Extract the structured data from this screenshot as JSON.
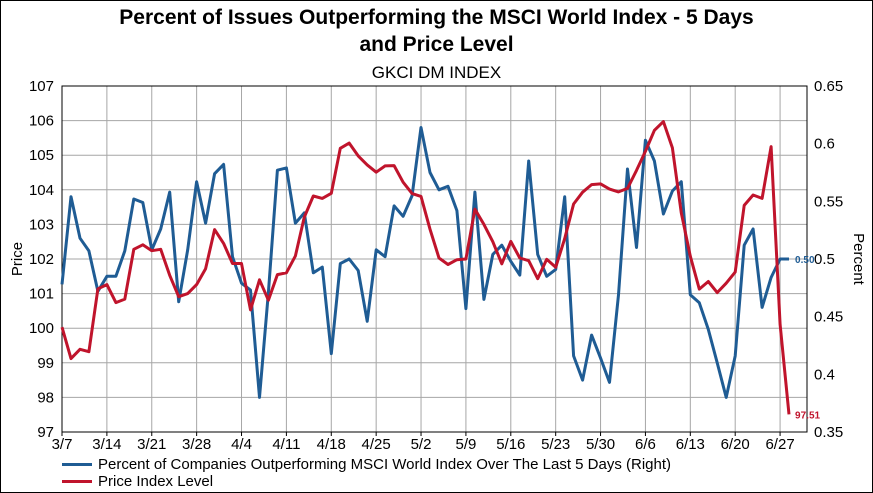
{
  "header": {
    "title_line1": "Percent of Issues Outperforming the MSCI World Index - 5 Days",
    "title_line2": "and Price Level",
    "subtitle": "GKCI DM INDEX"
  },
  "legend": {
    "items": [
      {
        "label": "Percent of Companies Outperforming MSCI World Index Over The Last 5 Days  (Right)",
        "color": "#1f5c94"
      },
      {
        "label": "Price Index Level",
        "color": "#c0142c"
      }
    ]
  },
  "chart_data": {
    "type": "line",
    "title": "Percent of Issues Outperforming the MSCI World Index - 5 Days and Price Level",
    "subtitle": "GKCI DM INDEX",
    "ylabel_left": "Price",
    "ylabel_right": "Percent",
    "ylim_left": [
      97,
      107
    ],
    "ylim_right": [
      0.35,
      0.65
    ],
    "yticks_left": [
      "97",
      "98",
      "99",
      "100",
      "101",
      "102",
      "103",
      "104",
      "105",
      "106",
      "107"
    ],
    "yticks_right": [
      "0.35",
      "0.4",
      "0.45",
      "0.5",
      "0.55",
      "0.6",
      "0.65"
    ],
    "x_tick_labels": [
      "3/7",
      "3/14",
      "3/21",
      "3/28",
      "4/4",
      "4/11",
      "4/18",
      "4/25",
      "5/2",
      "5/9",
      "5/16",
      "5/23",
      "5/30",
      "6/6",
      "6/13",
      "6/20",
      "6/27"
    ],
    "x_tick_positions": [
      0,
      5,
      10,
      15,
      20,
      25,
      30,
      35,
      40,
      45,
      50,
      55,
      60,
      65,
      70,
      75,
      80
    ],
    "grid": true,
    "legend_position": "bottom-left",
    "series": [
      {
        "name": "Percent of Companies Outperforming MSCI World Index Over The Last 5 Days  (Right)",
        "axis": "right",
        "color": "#1f5c94",
        "end_label": "0.50",
        "values": [
          0.478,
          0.554,
          0.518,
          0.507,
          0.472,
          0.485,
          0.485,
          0.507,
          0.552,
          0.549,
          0.508,
          0.526,
          0.558,
          0.463,
          0.508,
          0.567,
          0.531,
          0.574,
          0.582,
          0.502,
          0.479,
          0.473,
          0.38,
          0.471,
          0.577,
          0.579,
          0.531,
          0.54,
          0.488,
          0.493,
          0.418,
          0.496,
          0.5,
          0.49,
          0.446,
          0.508,
          0.502,
          0.546,
          0.537,
          0.555,
          0.614,
          0.575,
          0.56,
          0.563,
          0.542,
          0.457,
          0.558,
          0.465,
          0.504,
          0.512,
          0.498,
          0.486,
          0.585,
          0.504,
          0.485,
          0.491,
          0.554,
          0.416,
          0.395,
          0.434,
          0.414,
          0.393,
          0.469,
          0.578,
          0.51,
          0.603,
          0.585,
          0.539,
          0.559,
          0.567,
          0.469,
          0.462,
          0.439,
          0.41,
          0.38,
          0.416,
          0.512,
          0.526,
          0.458,
          0.484,
          0.5,
          0.5
        ]
      },
      {
        "name": "Price Index Level",
        "axis": "left",
        "color": "#c0142c",
        "end_label": "97.51",
        "values": [
          100.03,
          99.12,
          99.39,
          99.32,
          101.14,
          101.26,
          100.74,
          100.84,
          102.28,
          102.41,
          102.24,
          102.28,
          101.53,
          100.91,
          101.0,
          101.26,
          101.72,
          102.85,
          102.45,
          101.87,
          101.87,
          100.53,
          101.4,
          100.81,
          101.55,
          101.6,
          102.09,
          103.21,
          103.82,
          103.75,
          103.9,
          105.2,
          105.35,
          104.98,
          104.72,
          104.51,
          104.69,
          104.7,
          104.22,
          103.89,
          103.81,
          102.86,
          102.03,
          101.84,
          101.98,
          102.0,
          103.44,
          103.0,
          102.5,
          101.86,
          102.51,
          102.03,
          101.95,
          101.43,
          101.99,
          101.76,
          102.59,
          103.59,
          103.93,
          104.15,
          104.17,
          104.02,
          103.94,
          104.04,
          104.56,
          105.11,
          105.72,
          105.97,
          105.21,
          103.33,
          102.08,
          101.13,
          101.35,
          101.03,
          101.3,
          101.62,
          103.55,
          103.85,
          103.75,
          105.25,
          100.11,
          97.51
        ]
      }
    ]
  }
}
